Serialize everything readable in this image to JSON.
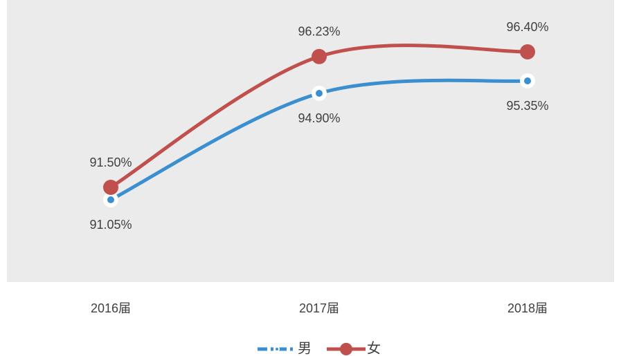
{
  "chart_data": {
    "type": "line",
    "categories": [
      "2016届",
      "2017届",
      "2018届"
    ],
    "series": [
      {
        "name": "男",
        "color": "#3a8fd0",
        "values": [
          91.05,
          94.9,
          95.35
        ],
        "value_labels": [
          "91.05%",
          "94.90%",
          "95.35%"
        ]
      },
      {
        "name": "女",
        "color": "#c0504d",
        "values": [
          91.5,
          96.23,
          96.4
        ],
        "value_labels": [
          "91.50%",
          "96.23%",
          "96.40%"
        ]
      }
    ],
    "ylim": [
      88,
      98
    ],
    "grid": false,
    "legend": "bottom"
  }
}
